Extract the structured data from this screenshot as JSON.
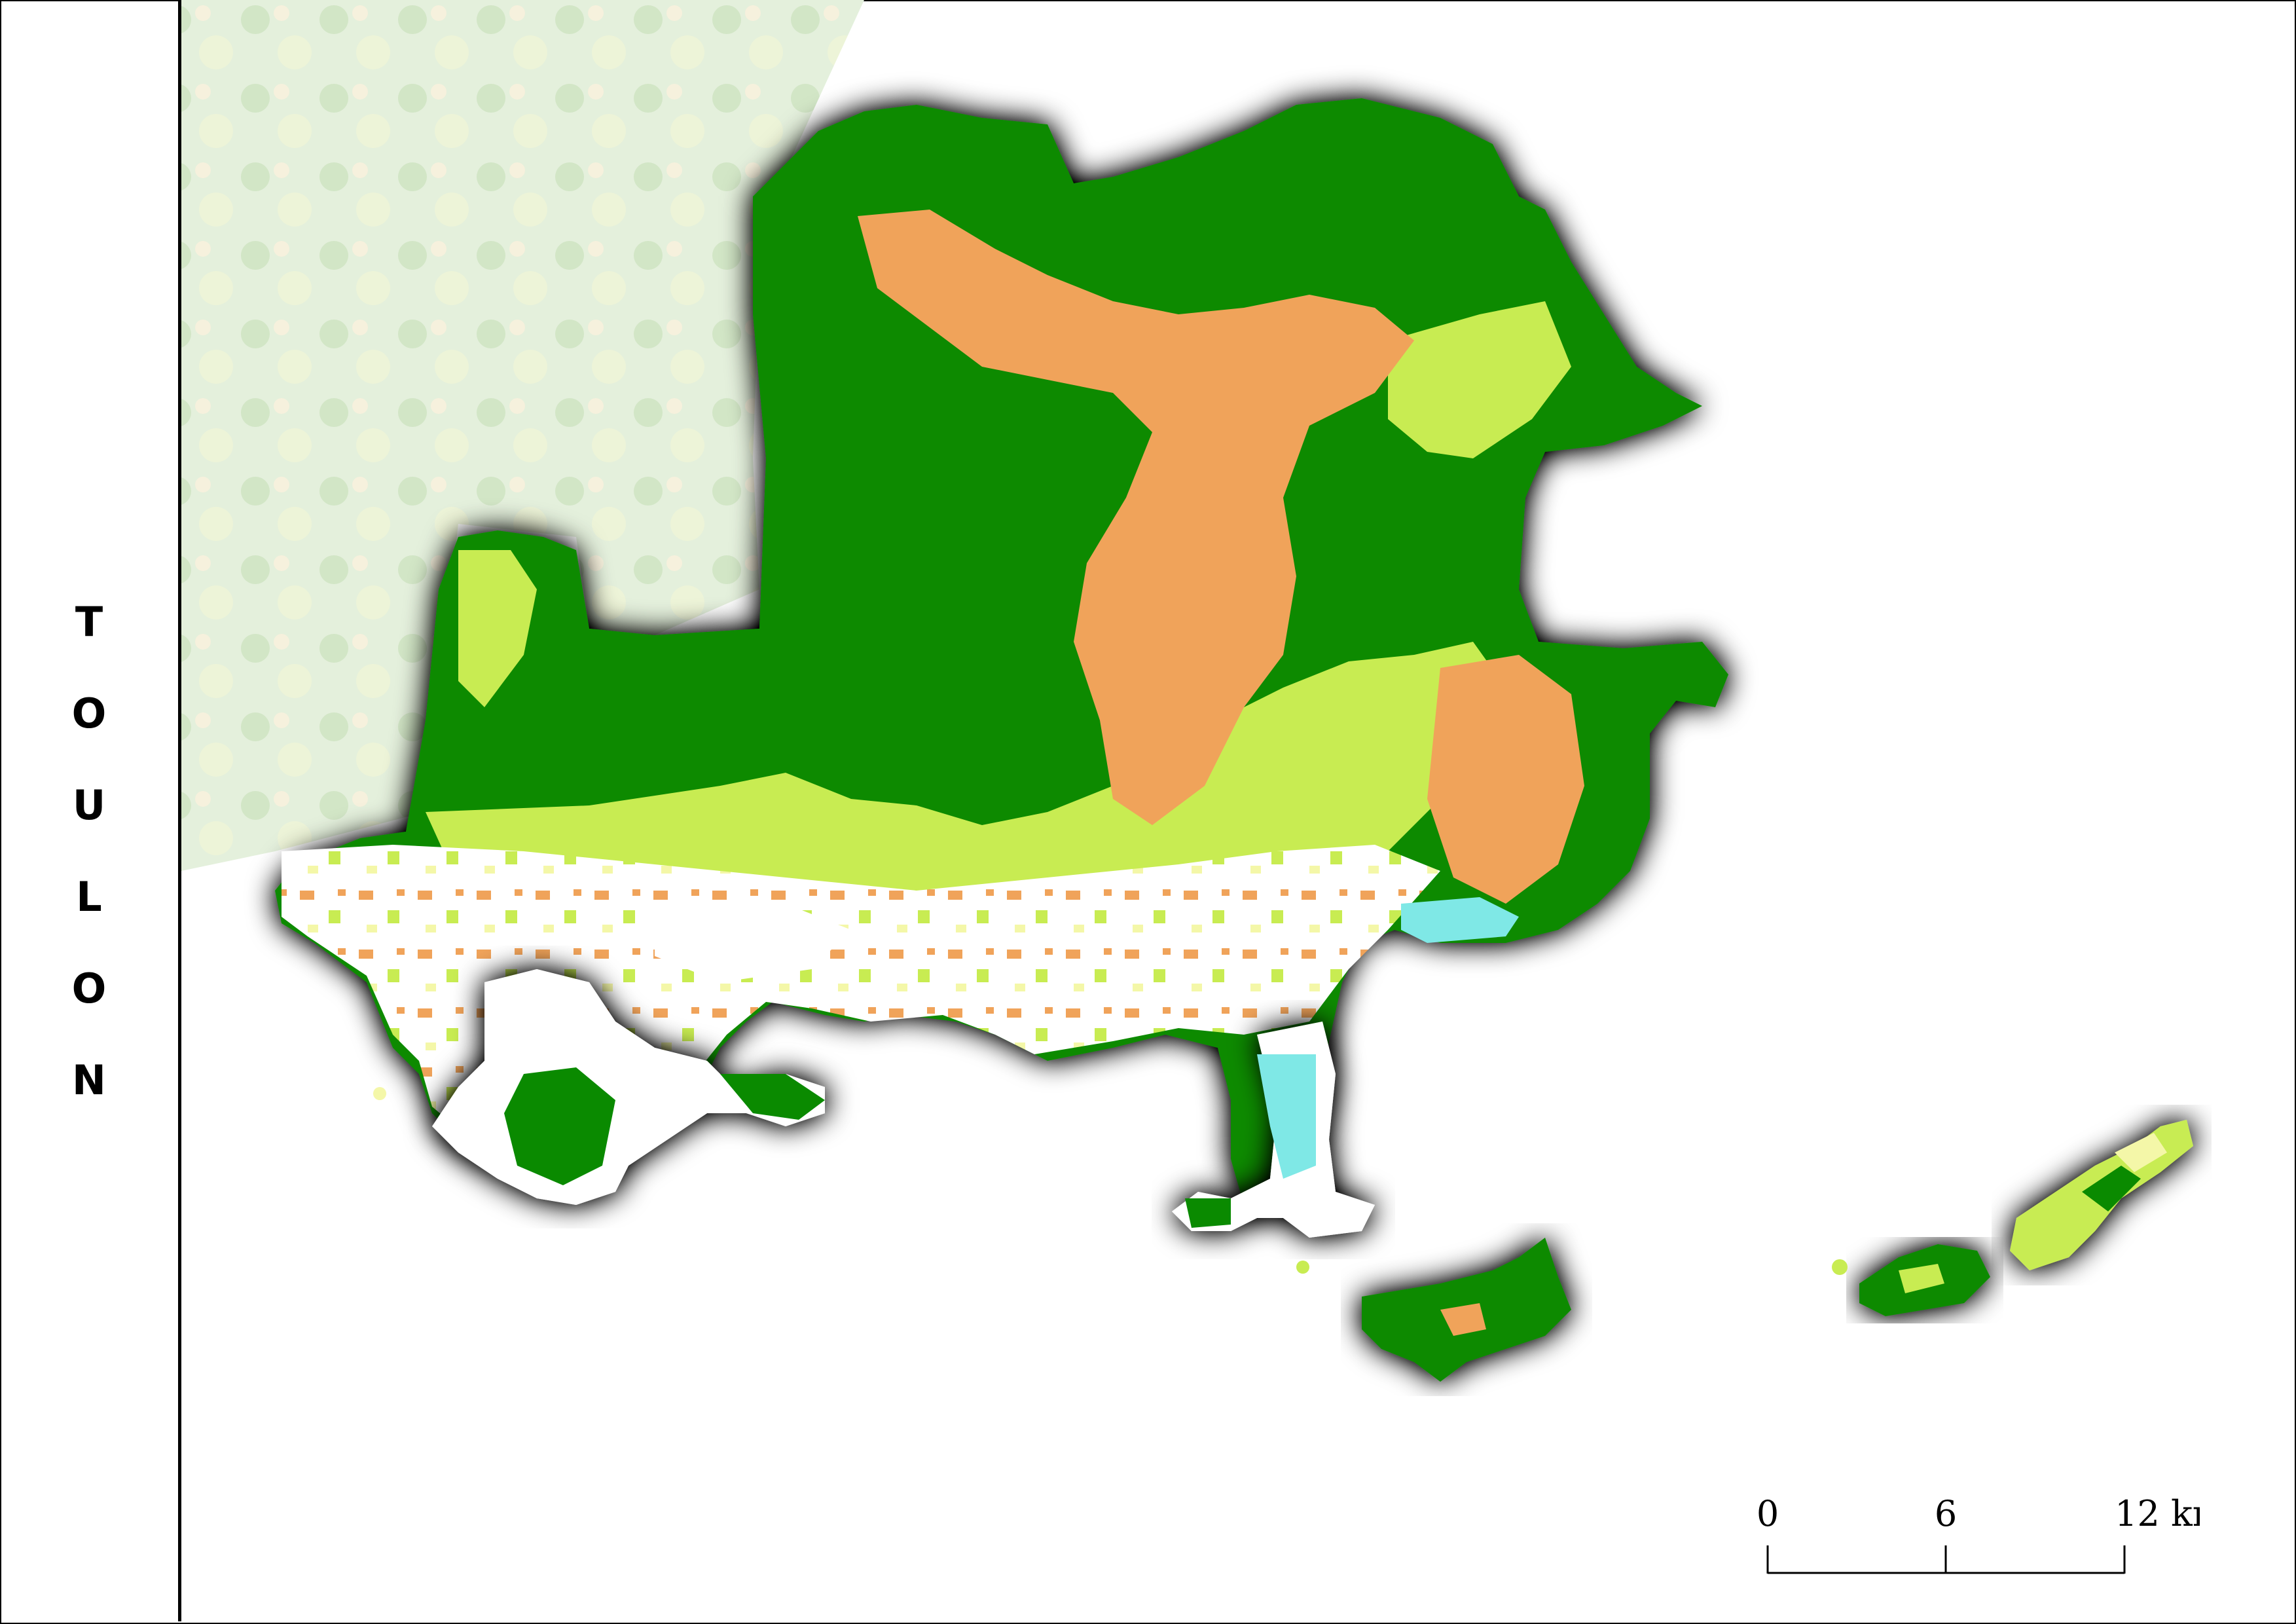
{
  "title": {
    "letters": [
      "T",
      "O",
      "U",
      "L",
      "O",
      "N"
    ]
  },
  "colors": {
    "dense_forest": "#0a8a00",
    "light_vegetation": "#c8ec52",
    "pale_vegetation": "#f4f7a8",
    "agriculture": "#f0a35a",
    "urban": "#ffffff",
    "water": "#7fe8e6",
    "background_fade": "#dcebd2"
  },
  "scale_bar": {
    "labels": [
      "0",
      "6",
      "12 km"
    ]
  }
}
